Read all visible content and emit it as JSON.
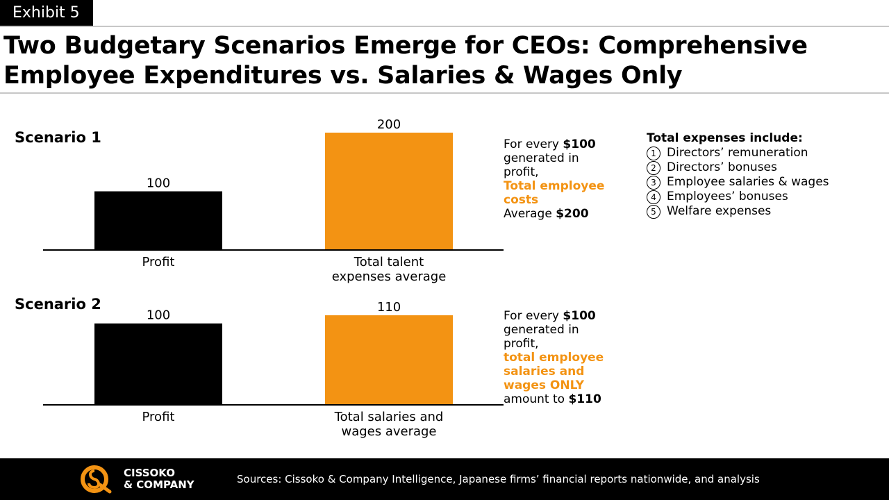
{
  "exhibit_label": "Exhibit 5",
  "title": "Two Budgetary Scenarios Emerge for CEOs: Comprehensive Employee Expenditures vs. Salaries & Wages Only",
  "colors": {
    "profit_bar": "#000000",
    "expense_bar": "#f39313",
    "accent": "#f39313"
  },
  "chart_data": [
    {
      "type": "bar",
      "title": "Scenario 1",
      "categories": [
        "Profit",
        "Total talent expenses average"
      ],
      "values": [
        100,
        200
      ],
      "data_labels": [
        "100",
        "200"
      ],
      "ylim": [
        0,
        200
      ]
    },
    {
      "type": "bar",
      "title": "Scenario 2",
      "categories": [
        "Profit",
        "Total salaries and wages average"
      ],
      "values": [
        100,
        110
      ],
      "data_labels": [
        "100",
        "110"
      ],
      "ylim": [
        0,
        110
      ]
    }
  ],
  "scenario1_note": {
    "l1a": "For every ",
    "l1b": "$100",
    "l2": "generated in",
    "l3": "profit,",
    "l4": "Total employee",
    "l5": "costs",
    "l6a": "Average ",
    "l6b": "$200"
  },
  "scenario2_note": {
    "l1a": "For every ",
    "l1b": "$100",
    "l2": "generated in",
    "l3": "profit,",
    "l4": "total employee",
    "l5": "salaries and",
    "l6": "wages ONLY",
    "l7a": "amount to ",
    "l7b": "$110"
  },
  "expenses": {
    "heading": "Total expenses include:",
    "items": [
      {
        "num": "1",
        "text": "Directors’ remuneration"
      },
      {
        "num": "2",
        "text": "Directors’ bonuses"
      },
      {
        "num": "3",
        "text": "Employee salaries & wages"
      },
      {
        "num": "4",
        "text": "Employees’ bonuses"
      },
      {
        "num": "5",
        "text": "Welfare expenses"
      }
    ]
  },
  "footer": {
    "logo_line1": "CISSOKO",
    "logo_line2": "& COMPANY",
    "sources": "Sources: Cissoko & Company Intelligence, Japanese firms’ financial reports nationwide, and analysis"
  }
}
